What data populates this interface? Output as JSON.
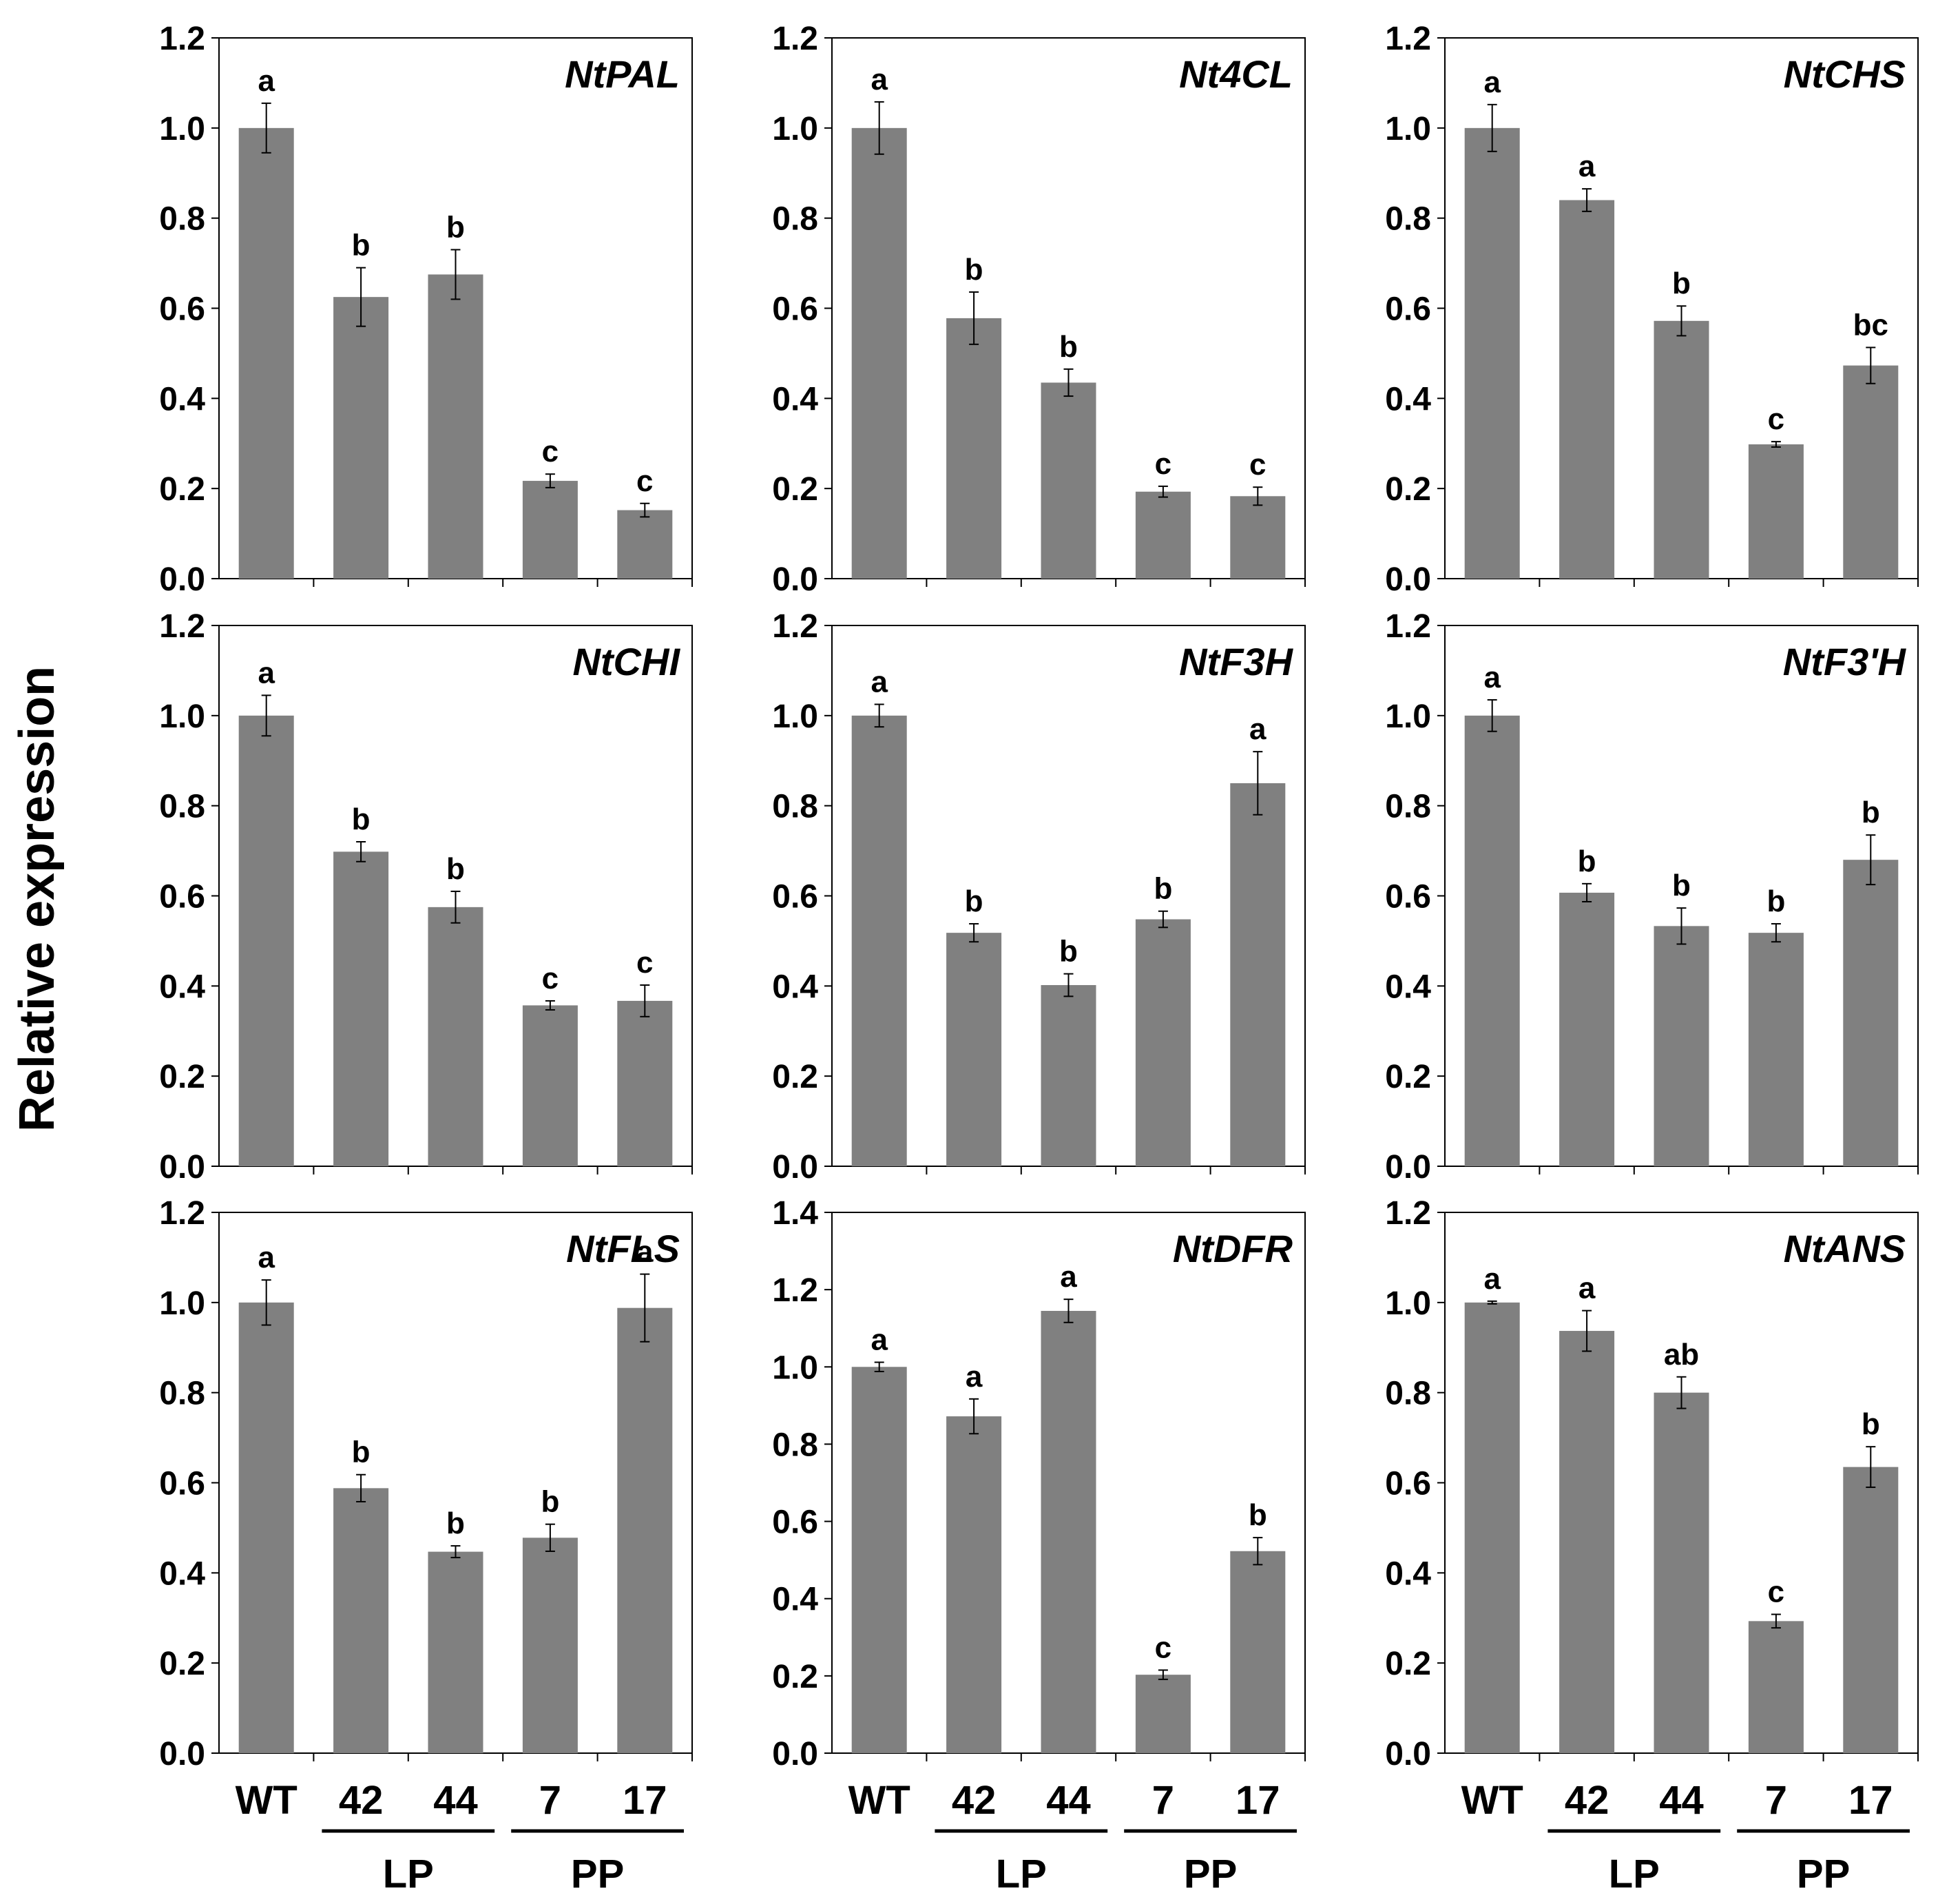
{
  "figure": {
    "ylabel": "Relative expression",
    "bar_color": "#808080",
    "axis_color": "#000000"
  },
  "chart_data": [
    {
      "type": "bar",
      "title": "NtPAL",
      "categories": [
        "WT",
        "42",
        "44",
        "7",
        "17"
      ],
      "values": [
        1.0,
        0.625,
        0.675,
        0.217,
        0.152
      ],
      "errors": [
        0.055,
        0.065,
        0.055,
        0.015,
        0.015
      ],
      "letters": [
        "a",
        "b",
        "b",
        "c",
        "c"
      ],
      "ylim": [
        0,
        1.2
      ],
      "yticks": [
        "0.0",
        "0.2",
        "0.4",
        "0.6",
        "0.8",
        "1.0",
        "1.2"
      ],
      "groups": [
        {
          "label": "LP",
          "members": [
            "42",
            "44"
          ]
        },
        {
          "label": "PP",
          "members": [
            "7",
            "17"
          ]
        }
      ]
    },
    {
      "type": "bar",
      "title": "Nt4CL",
      "categories": [
        "WT",
        "42",
        "44",
        "7",
        "17"
      ],
      "values": [
        1.0,
        0.578,
        0.435,
        0.193,
        0.183
      ],
      "errors": [
        0.058,
        0.058,
        0.03,
        0.012,
        0.02
      ],
      "letters": [
        "a",
        "b",
        "b",
        "c",
        "c"
      ],
      "ylim": [
        0,
        1.2
      ],
      "yticks": [
        "0.0",
        "0.2",
        "0.4",
        "0.6",
        "0.8",
        "1.0",
        "1.2"
      ],
      "groups": [
        {
          "label": "LP",
          "members": [
            "42",
            "44"
          ]
        },
        {
          "label": "PP",
          "members": [
            "7",
            "17"
          ]
        }
      ]
    },
    {
      "type": "bar",
      "title": "NtCHS",
      "categories": [
        "WT",
        "42",
        "44",
        "7",
        "17"
      ],
      "values": [
        1.0,
        0.84,
        0.572,
        0.298,
        0.473
      ],
      "errors": [
        0.052,
        0.025,
        0.033,
        0.006,
        0.04
      ],
      "letters": [
        "a",
        "a",
        "b",
        "c",
        "bc"
      ],
      "ylim": [
        0,
        1.2
      ],
      "yticks": [
        "0.0",
        "0.2",
        "0.4",
        "0.6",
        "0.8",
        "1.0",
        "1.2"
      ],
      "groups": [
        {
          "label": "LP",
          "members": [
            "42",
            "44"
          ]
        },
        {
          "label": "PP",
          "members": [
            "7",
            "17"
          ]
        }
      ]
    },
    {
      "type": "bar",
      "title": "NtCHI",
      "categories": [
        "WT",
        "42",
        "44",
        "7",
        "17"
      ],
      "values": [
        1.0,
        0.698,
        0.575,
        0.357,
        0.367
      ],
      "errors": [
        0.045,
        0.022,
        0.035,
        0.01,
        0.035
      ],
      "letters": [
        "a",
        "b",
        "b",
        "c",
        "c"
      ],
      "ylim": [
        0,
        1.2
      ],
      "yticks": [
        "0.0",
        "0.2",
        "0.4",
        "0.6",
        "0.8",
        "1.0",
        "1.2"
      ],
      "groups": [
        {
          "label": "LP",
          "members": [
            "42",
            "44"
          ]
        },
        {
          "label": "PP",
          "members": [
            "7",
            "17"
          ]
        }
      ]
    },
    {
      "type": "bar",
      "title": "NtF3H",
      "categories": [
        "WT",
        "42",
        "44",
        "7",
        "17"
      ],
      "values": [
        1.0,
        0.518,
        0.402,
        0.548,
        0.85
      ],
      "errors": [
        0.025,
        0.02,
        0.025,
        0.018,
        0.07
      ],
      "letters": [
        "a",
        "b",
        "b",
        "b",
        "a"
      ],
      "ylim": [
        0,
        1.2
      ],
      "yticks": [
        "0.0",
        "0.2",
        "0.4",
        "0.6",
        "0.8",
        "1.0",
        "1.2"
      ],
      "groups": [
        {
          "label": "LP",
          "members": [
            "42",
            "44"
          ]
        },
        {
          "label": "PP",
          "members": [
            "7",
            "17"
          ]
        }
      ]
    },
    {
      "type": "bar",
      "title": "NtF3'H",
      "categories": [
        "WT",
        "42",
        "44",
        "7",
        "17"
      ],
      "values": [
        1.0,
        0.607,
        0.533,
        0.518,
        0.68
      ],
      "errors": [
        0.035,
        0.02,
        0.04,
        0.02,
        0.055
      ],
      "letters": [
        "a",
        "b",
        "b",
        "b",
        "b"
      ],
      "ylim": [
        0,
        1.2
      ],
      "yticks": [
        "0.0",
        "0.2",
        "0.4",
        "0.6",
        "0.8",
        "1.0",
        "1.2"
      ],
      "groups": [
        {
          "label": "LP",
          "members": [
            "42",
            "44"
          ]
        },
        {
          "label": "PP",
          "members": [
            "7",
            "17"
          ]
        }
      ]
    },
    {
      "type": "bar",
      "title": "NtFLS",
      "categories": [
        "WT",
        "42",
        "44",
        "7",
        "17"
      ],
      "values": [
        1.0,
        0.588,
        0.447,
        0.478,
        0.988
      ],
      "errors": [
        0.05,
        0.03,
        0.013,
        0.03,
        0.075
      ],
      "letters": [
        "a",
        "b",
        "b",
        "b",
        "a"
      ],
      "ylim": [
        0,
        1.2
      ],
      "yticks": [
        "0.0",
        "0.2",
        "0.4",
        "0.6",
        "0.8",
        "1.0",
        "1.2"
      ],
      "groups": [
        {
          "label": "LP",
          "members": [
            "42",
            "44"
          ]
        },
        {
          "label": "PP",
          "members": [
            "7",
            "17"
          ]
        }
      ]
    },
    {
      "type": "bar",
      "title": "NtDFR",
      "categories": [
        "WT",
        "42",
        "44",
        "7",
        "17"
      ],
      "values": [
        1.0,
        0.872,
        1.145,
        0.203,
        0.523
      ],
      "errors": [
        0.012,
        0.045,
        0.03,
        0.012,
        0.035
      ],
      "letters": [
        "a",
        "a",
        "a",
        "c",
        "b"
      ],
      "ylim": [
        0,
        1.4
      ],
      "yticks": [
        "0.0",
        "0.2",
        "0.4",
        "0.6",
        "0.8",
        "1.0",
        "1.2",
        "1.4"
      ],
      "groups": [
        {
          "label": "LP",
          "members": [
            "42",
            "44"
          ]
        },
        {
          "label": "PP",
          "members": [
            "7",
            "17"
          ]
        }
      ]
    },
    {
      "type": "bar",
      "title": "NtANS",
      "categories": [
        "WT",
        "42",
        "44",
        "7",
        "17"
      ],
      "values": [
        1.0,
        0.937,
        0.8,
        0.293,
        0.635
      ],
      "errors": [
        0.003,
        0.045,
        0.035,
        0.015,
        0.045
      ],
      "letters": [
        "a",
        "a",
        "ab",
        "c",
        "b"
      ],
      "ylim": [
        0,
        1.2
      ],
      "yticks": [
        "0.0",
        "0.2",
        "0.4",
        "0.6",
        "0.8",
        "1.0",
        "1.2"
      ],
      "groups": [
        {
          "label": "LP",
          "members": [
            "42",
            "44"
          ]
        },
        {
          "label": "PP",
          "members": [
            "7",
            "17"
          ]
        }
      ]
    }
  ]
}
